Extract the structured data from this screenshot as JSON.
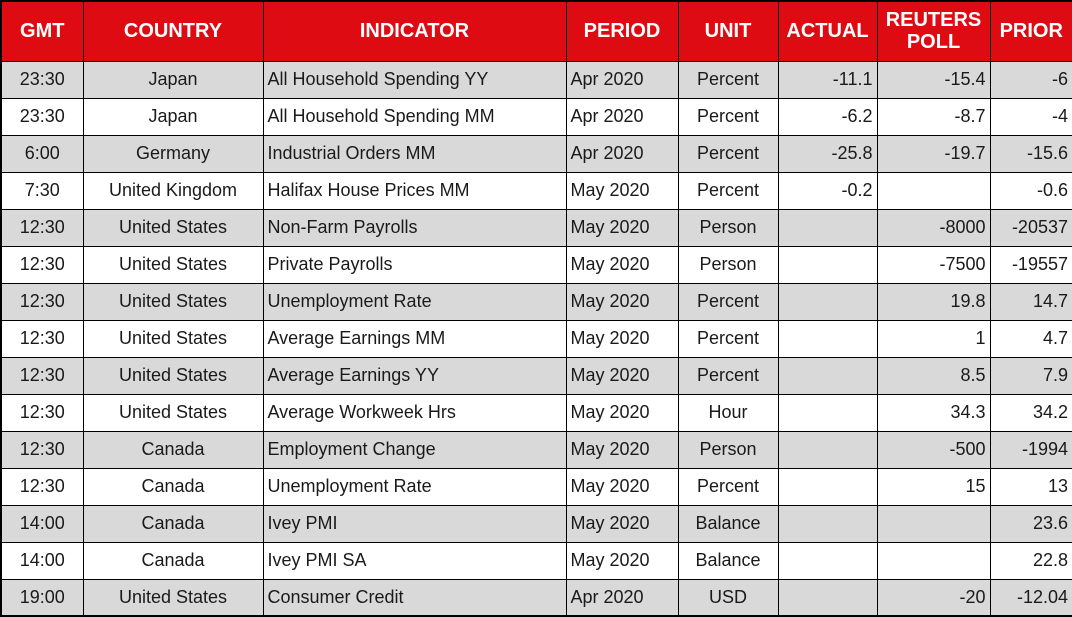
{
  "table": {
    "title": "economic-calendar",
    "headers": {
      "gmt": "GMT",
      "country": "COUNTRY",
      "indicator": "INDICATOR",
      "period": "PERIOD",
      "unit": "UNIT",
      "actual": "ACTUAL",
      "poll": "REUTERS POLL",
      "prior": "PRIOR"
    },
    "rows": [
      {
        "gmt": "23:30",
        "country": "Japan",
        "indicator": "All Household Spending YY",
        "period": "Apr 2020",
        "unit": "Percent",
        "actual": "-11.1",
        "poll": "-15.4",
        "prior": "-6"
      },
      {
        "gmt": "23:30",
        "country": "Japan",
        "indicator": "All Household Spending MM",
        "period": "Apr 2020",
        "unit": "Percent",
        "actual": "-6.2",
        "poll": "-8.7",
        "prior": "-4"
      },
      {
        "gmt": "6:00",
        "country": "Germany",
        "indicator": "Industrial Orders MM",
        "period": "Apr 2020",
        "unit": "Percent",
        "actual": "-25.8",
        "poll": "-19.7",
        "prior": "-15.6"
      },
      {
        "gmt": "7:30",
        "country": "United Kingdom",
        "indicator": "Halifax House Prices MM",
        "period": "May 2020",
        "unit": "Percent",
        "actual": "-0.2",
        "poll": "",
        "prior": "-0.6"
      },
      {
        "gmt": "12:30",
        "country": "United States",
        "indicator": "Non-Farm Payrolls",
        "period": "May 2020",
        "unit": "Person",
        "actual": "",
        "poll": "-8000",
        "prior": "-20537"
      },
      {
        "gmt": "12:30",
        "country": "United States",
        "indicator": "Private Payrolls",
        "period": "May 2020",
        "unit": "Person",
        "actual": "",
        "poll": "-7500",
        "prior": "-19557"
      },
      {
        "gmt": "12:30",
        "country": "United States",
        "indicator": "Unemployment Rate",
        "period": "May 2020",
        "unit": "Percent",
        "actual": "",
        "poll": "19.8",
        "prior": "14.7"
      },
      {
        "gmt": "12:30",
        "country": "United States",
        "indicator": "Average Earnings MM",
        "period": "May 2020",
        "unit": "Percent",
        "actual": "",
        "poll": "1",
        "prior": "4.7"
      },
      {
        "gmt": "12:30",
        "country": "United States",
        "indicator": "Average Earnings YY",
        "period": "May 2020",
        "unit": "Percent",
        "actual": "",
        "poll": "8.5",
        "prior": "7.9"
      },
      {
        "gmt": "12:30",
        "country": "United States",
        "indicator": "Average Workweek Hrs",
        "period": "May 2020",
        "unit": "Hour",
        "actual": "",
        "poll": "34.3",
        "prior": "34.2"
      },
      {
        "gmt": "12:30",
        "country": "Canada",
        "indicator": "Employment Change",
        "period": "May 2020",
        "unit": "Person",
        "actual": "",
        "poll": "-500",
        "prior": "-1994"
      },
      {
        "gmt": "12:30",
        "country": "Canada",
        "indicator": "Unemployment Rate",
        "period": "May 2020",
        "unit": "Percent",
        "actual": "",
        "poll": "15",
        "prior": "13"
      },
      {
        "gmt": "14:00",
        "country": "Canada",
        "indicator": "Ivey PMI",
        "period": "May 2020",
        "unit": "Balance",
        "actual": "",
        "poll": "",
        "prior": "23.6"
      },
      {
        "gmt": "14:00",
        "country": "Canada",
        "indicator": "Ivey PMI SA",
        "period": "May 2020",
        "unit": "Balance",
        "actual": "",
        "poll": "",
        "prior": "22.8"
      },
      {
        "gmt": "19:00",
        "country": "United States",
        "indicator": "Consumer Credit",
        "period": "Apr 2020",
        "unit": "USD",
        "actual": "",
        "poll": "-20",
        "prior": "-12.04"
      }
    ],
    "colors": {
      "header_bg": "#DF0B12",
      "header_text": "#FFFFFF",
      "row_alt_bg": "#D9D9D9",
      "row_bg": "#FFFFFF",
      "border": "#000000"
    }
  }
}
